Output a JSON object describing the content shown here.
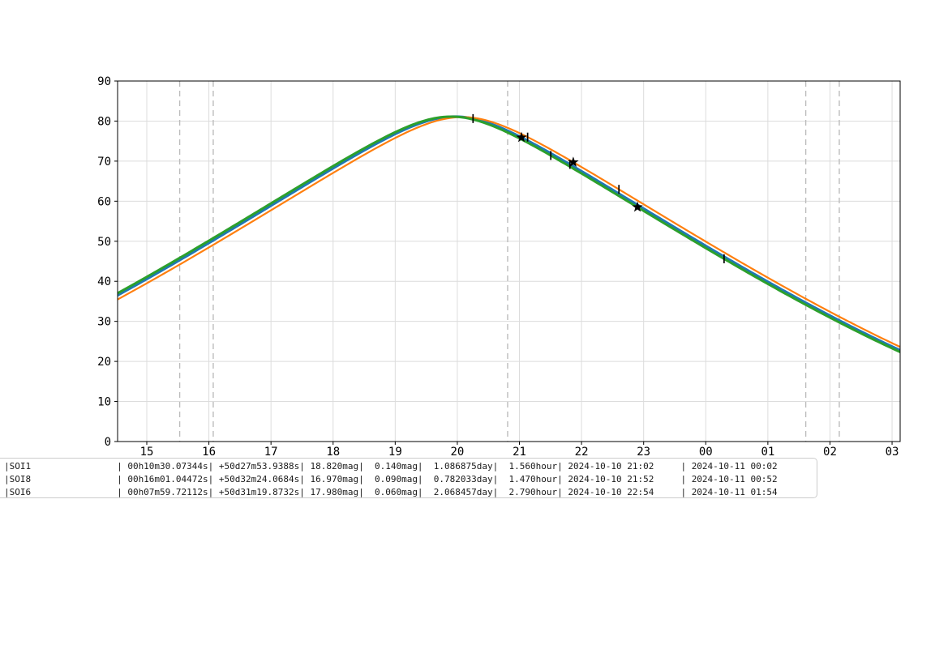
{
  "chart_data": {
    "type": "line",
    "title": "",
    "xlabel": "",
    "ylabel": "",
    "xlim_hours": [
      14.53,
      27.13
    ],
    "ylim": [
      0,
      90
    ],
    "y_ticks": [
      0,
      10,
      20,
      30,
      40,
      50,
      60,
      70,
      80,
      90
    ],
    "x_ticks": [
      {
        "hour": 15,
        "label": "15"
      },
      {
        "hour": 16,
        "label": "16"
      },
      {
        "hour": 17,
        "label": "17"
      },
      {
        "hour": 18,
        "label": "18"
      },
      {
        "hour": 19,
        "label": "19"
      },
      {
        "hour": 20,
        "label": "20"
      },
      {
        "hour": 21,
        "label": "21"
      },
      {
        "hour": 22,
        "label": "22"
      },
      {
        "hour": 23,
        "label": "23"
      },
      {
        "hour": 24,
        "label": "00"
      },
      {
        "hour": 25,
        "label": "01"
      },
      {
        "hour": 26,
        "label": "02"
      },
      {
        "hour": 27,
        "label": "03"
      }
    ],
    "grid": true,
    "grid_color": "#dcdcdc",
    "dashed_vline_hours": [
      15.53,
      16.07,
      20.81,
      25.61,
      26.15
    ],
    "dashed_vline_color": "#bcbcbc",
    "series": [
      {
        "name": "SOI1",
        "color": "#1f77b4",
        "linewidth": 3.2,
        "model": {
          "A": 0.5263,
          "B": 0.4617,
          "transit_hour": 19.96
        },
        "points_by_hour": {
          "hours": [
            15,
            16,
            17,
            18,
            19,
            20,
            21,
            22,
            23,
            24,
            25,
            26,
            27
          ],
          "altitude_deg": [
            40.6,
            49.6,
            59.0,
            68.3,
            76.9,
            81.0,
            76.1,
            67.3,
            58.0,
            48.7,
            39.8,
            31.3,
            23.6
          ]
        }
      },
      {
        "name": "SOI8",
        "color": "#ff7f0e",
        "linewidth": 2.2,
        "model": {
          "A": 0.526,
          "B": 0.4617,
          "transit_hour": 20.08
        },
        "points_by_hour": {
          "hours": [
            15,
            16,
            17,
            18,
            19,
            20,
            21,
            22,
            23,
            24,
            25,
            26,
            27
          ],
          "altitude_deg": [
            39.5,
            48.5,
            57.7,
            67.1,
            75.8,
            80.9,
            77.0,
            68.5,
            59.2,
            49.9,
            40.9,
            32.4,
            24.6
          ]
        }
      },
      {
        "name": "SOI6",
        "color": "#2ca02c",
        "linewidth": 3.0,
        "model": {
          "A": 0.5263,
          "B": 0.4617,
          "transit_hour": 19.9
        },
        "points_by_hour": {
          "hours": [
            15,
            16,
            17,
            18,
            19,
            20,
            21,
            22,
            23,
            24,
            25,
            26,
            27
          ],
          "altitude_deg": [
            41.1,
            50.1,
            59.5,
            68.7,
            77.2,
            81.1,
            75.7,
            66.9,
            57.6,
            48.3,
            39.4,
            30.9,
            23.3
          ]
        }
      }
    ],
    "event_markers": [
      {
        "series": "SOI1",
        "marker": "star",
        "mid_hour": 21.033,
        "edge_hours": [
          20.253,
          21.813
        ],
        "marker_color": "#000000"
      },
      {
        "series": "SOI8",
        "marker": "star",
        "mid_hour": 21.867,
        "edge_hours": [
          21.132,
          22.602
        ],
        "marker_color": "#000000"
      },
      {
        "series": "SOI6",
        "marker": "star",
        "mid_hour": 22.9,
        "edge_hours": [
          21.505,
          24.295
        ],
        "marker_color": "#000000"
      }
    ],
    "legend": "none"
  },
  "results_table": {
    "columns": [
      "name",
      "ra",
      "dec",
      "mag",
      "depth",
      "period",
      "duration",
      "event_time_1",
      "event_time_2"
    ],
    "rows": [
      {
        "name": "SOI1",
        "ra": "00h10m30.07344s",
        "dec": "+50d27m53.9388s",
        "mag": "18.820mag",
        "depth": "0.140mag",
        "period": "1.086875day",
        "duration": "1.560hour",
        "event_time_1": "2024-10-10 21:02",
        "event_time_2": "2024-10-11 00:02"
      },
      {
        "name": "SOI8",
        "ra": "00h16m01.04472s",
        "dec": "+50d32m24.0684s",
        "mag": "16.970mag",
        "depth": "0.090mag",
        "period": "0.782033day",
        "duration": "1.470hour",
        "event_time_1": "2024-10-10 21:52",
        "event_time_2": "2024-10-11 00:52"
      },
      {
        "name": "SOI6",
        "ra": "00h07m59.72112s",
        "dec": "+50d31m19.8732s",
        "mag": "17.980mag",
        "depth": "0.060mag",
        "period": "2.068457day",
        "duration": "2.790hour",
        "event_time_1": "2024-10-10 22:54",
        "event_time_2": "2024-10-11 01:54"
      }
    ]
  },
  "colors": {
    "axes_spine": "#000000",
    "tick_label": "#000000",
    "background": "#ffffff",
    "table_border": "#cccccc"
  }
}
